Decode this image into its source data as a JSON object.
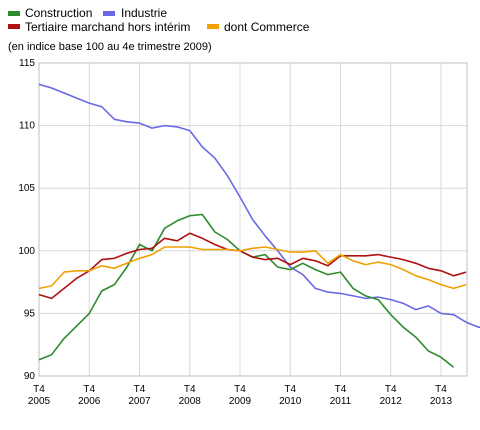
{
  "chart_data": {
    "type": "line",
    "subtitle": "(en indice base 100 au 4e trimestre 2009)",
    "legend": [
      {
        "label": "Construction",
        "color": "#2e8b2e"
      },
      {
        "label": "Industrie",
        "color": "#6a6ae6"
      },
      {
        "label": "Tertiaire marchand hors intérim",
        "color": "#b01010"
      },
      {
        "label": "dont Commerce",
        "color": "#f0a000"
      }
    ],
    "ylim": [
      90,
      115
    ],
    "yticks": [
      90,
      95,
      100,
      105,
      110,
      115
    ],
    "grid": true,
    "x_start": "2005 Q4",
    "x_end": "2013 Q4",
    "xtick_labels": [
      {
        "top": "T4",
        "bottom": "2005"
      },
      {
        "top": "T4",
        "bottom": "2006"
      },
      {
        "top": "T4",
        "bottom": "2007"
      },
      {
        "top": "T4",
        "bottom": "2008"
      },
      {
        "top": "T4",
        "bottom": "2009"
      },
      {
        "top": "T4",
        "bottom": "2010"
      },
      {
        "top": "T4",
        "bottom": "2011"
      },
      {
        "top": "T4",
        "bottom": "2012"
      },
      {
        "top": "T4",
        "bottom": "2013"
      }
    ],
    "series": [
      {
        "name": "Industrie",
        "color": "#6a6ae6",
        "values": [
          113.3,
          113.0,
          112.6,
          112.2,
          111.8,
          111.5,
          110.5,
          110.3,
          110.2,
          109.8,
          110.0,
          109.9,
          109.6,
          108.3,
          107.4,
          106.0,
          104.3,
          102.5,
          101.2,
          100.0,
          98.7,
          98.1,
          97.0,
          96.7,
          96.6,
          96.4,
          96.2,
          96.3,
          96.1,
          95.8,
          95.3,
          95.6,
          95.0,
          94.9,
          94.3,
          93.9,
          93.9,
          93.0
        ]
      },
      {
        "name": "Construction",
        "color": "#2e8b2e",
        "values": [
          91.3,
          91.7,
          93.0,
          94.0,
          95.0,
          96.8,
          97.3,
          98.7,
          100.5,
          100.0,
          101.8,
          102.4,
          102.8,
          102.9,
          101.5,
          100.9,
          100.0,
          99.5,
          99.7,
          98.7,
          98.5,
          99.0,
          98.5,
          98.1,
          98.3,
          97.0,
          96.4,
          96.1,
          94.9,
          93.9,
          93.1,
          92.0,
          91.5,
          90.7
        ]
      },
      {
        "name": "Tertiaire marchand hors intérim",
        "color": "#b01010",
        "values": [
          96.5,
          96.2,
          97.0,
          97.8,
          98.4,
          99.3,
          99.4,
          99.8,
          100.1,
          100.2,
          101.0,
          100.8,
          101.4,
          101.0,
          100.5,
          100.1,
          100.0,
          99.5,
          99.3,
          99.4,
          98.9,
          99.4,
          99.2,
          98.8,
          99.6,
          99.6,
          99.6,
          99.7,
          99.5,
          99.3,
          99.0,
          98.6,
          98.4,
          98.0,
          98.3
        ]
      },
      {
        "name": "dont Commerce",
        "color": "#f0a000",
        "values": [
          97.0,
          97.2,
          98.3,
          98.4,
          98.4,
          98.8,
          98.6,
          99.0,
          99.4,
          99.7,
          100.3,
          100.3,
          100.3,
          100.1,
          100.1,
          100.1,
          100.0,
          100.2,
          100.3,
          100.1,
          99.9,
          99.9,
          100.0,
          99.0,
          99.7,
          99.2,
          98.9,
          99.1,
          98.9,
          98.5,
          98.0,
          97.7,
          97.3,
          97.0,
          97.3
        ]
      }
    ]
  }
}
